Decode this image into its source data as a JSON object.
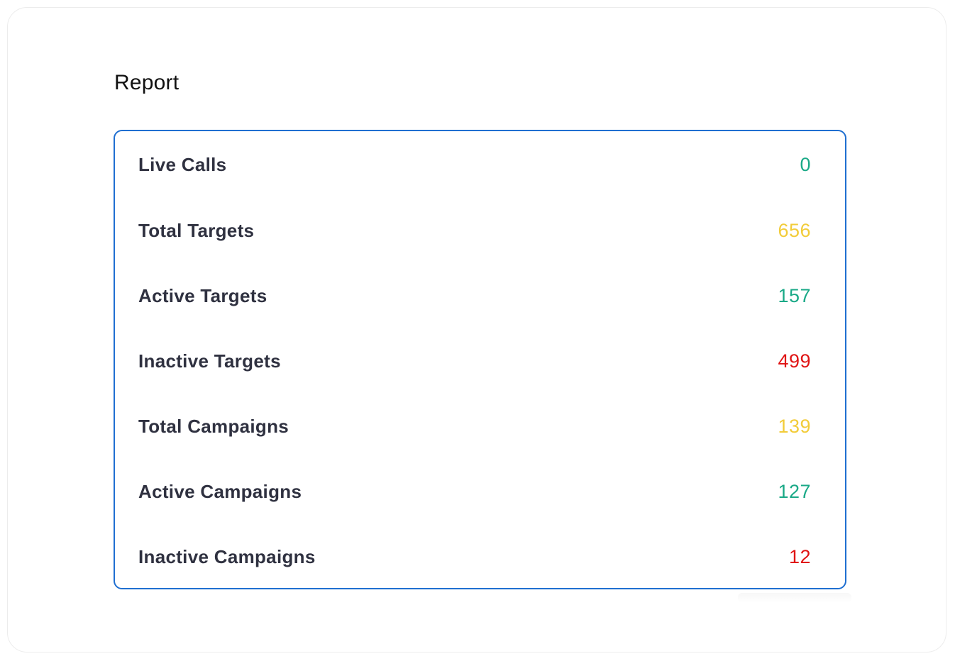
{
  "page": {
    "title": "Report"
  },
  "colors": {
    "card_border": "#1f6fd1",
    "green": "#1aa987",
    "yellow": "#f2cc3a",
    "red": "#e01414",
    "label": "#2f3140"
  },
  "report": {
    "rows": [
      {
        "label": "Live Calls",
        "value": "0",
        "color": "#1aa987"
      },
      {
        "label": "Total Targets",
        "value": "656",
        "color": "#f2cc3a"
      },
      {
        "label": "Active Targets",
        "value": "157",
        "color": "#1aa987"
      },
      {
        "label": "Inactive Targets",
        "value": "499",
        "color": "#e01414"
      },
      {
        "label": "Total Campaigns",
        "value": "139",
        "color": "#f2cc3a"
      },
      {
        "label": "Active Campaigns",
        "value": "127",
        "color": "#1aa987"
      },
      {
        "label": "Inactive Campaigns",
        "value": "12",
        "color": "#e01414"
      }
    ]
  }
}
